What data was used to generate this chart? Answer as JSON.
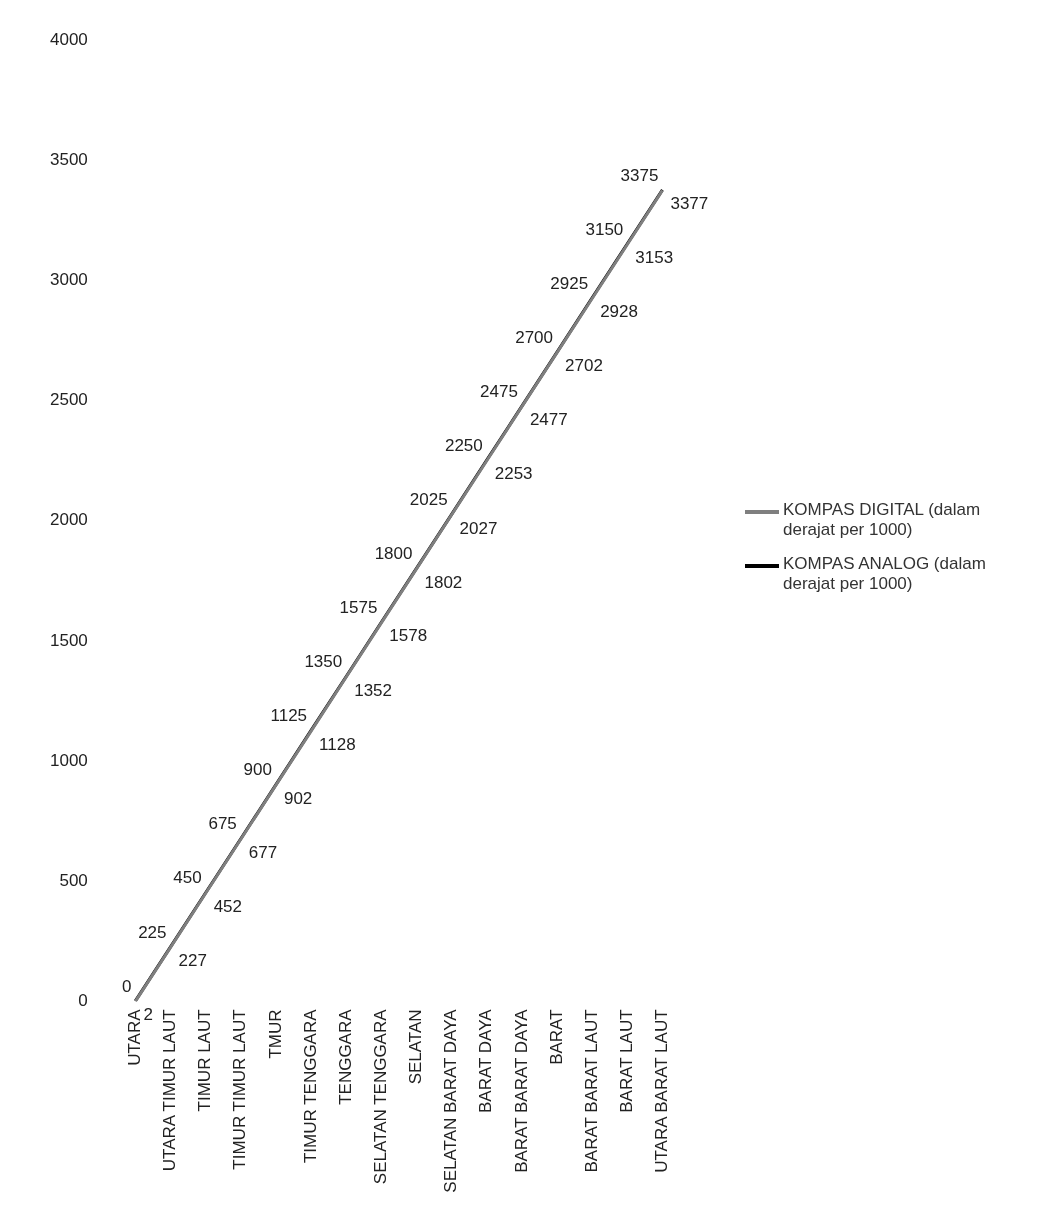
{
  "chart_data": {
    "type": "line",
    "categories": [
      "UTARA",
      "UTARA TIMUR LAUT",
      "TIMUR LAUT",
      "TIMUR TIMUR LAUT",
      "TMUR",
      "TIMUR TENGGARA",
      "TENGGARA",
      "SELATAN TENGGARA",
      "SELATAN",
      "SELATAN BARAT DAYA",
      "BARAT DAYA",
      "BARAT BARAT DAYA",
      "BARAT",
      "BARAT BARAT LAUT",
      "BARAT LAUT",
      "UTARA BARAT LAUT"
    ],
    "series": [
      {
        "name": "KOMPAS DIGITAL (dalam derajat per 1000)",
        "color": "#7f7f7f",
        "values": [
          0,
          225,
          450,
          675,
          900,
          1125,
          1350,
          1575,
          1800,
          2025,
          2250,
          2475,
          2700,
          2925,
          3150,
          3375
        ]
      },
      {
        "name": "KOMPAS ANALOG (dalam derajat per 1000)",
        "color": "#000000",
        "values": [
          2,
          227,
          452,
          677,
          902,
          1128,
          1352,
          1578,
          1802,
          2027,
          2253,
          2477,
          2702,
          2928,
          3153,
          3377
        ]
      }
    ],
    "ylim": [
      0,
      4000
    ],
    "yticks": [
      0,
      500,
      1000,
      1500,
      2000,
      2500,
      3000,
      3500,
      4000
    ],
    "grid": false,
    "legend": "right",
    "data_labels": true,
    "marker": "none",
    "line_style": "solid"
  }
}
